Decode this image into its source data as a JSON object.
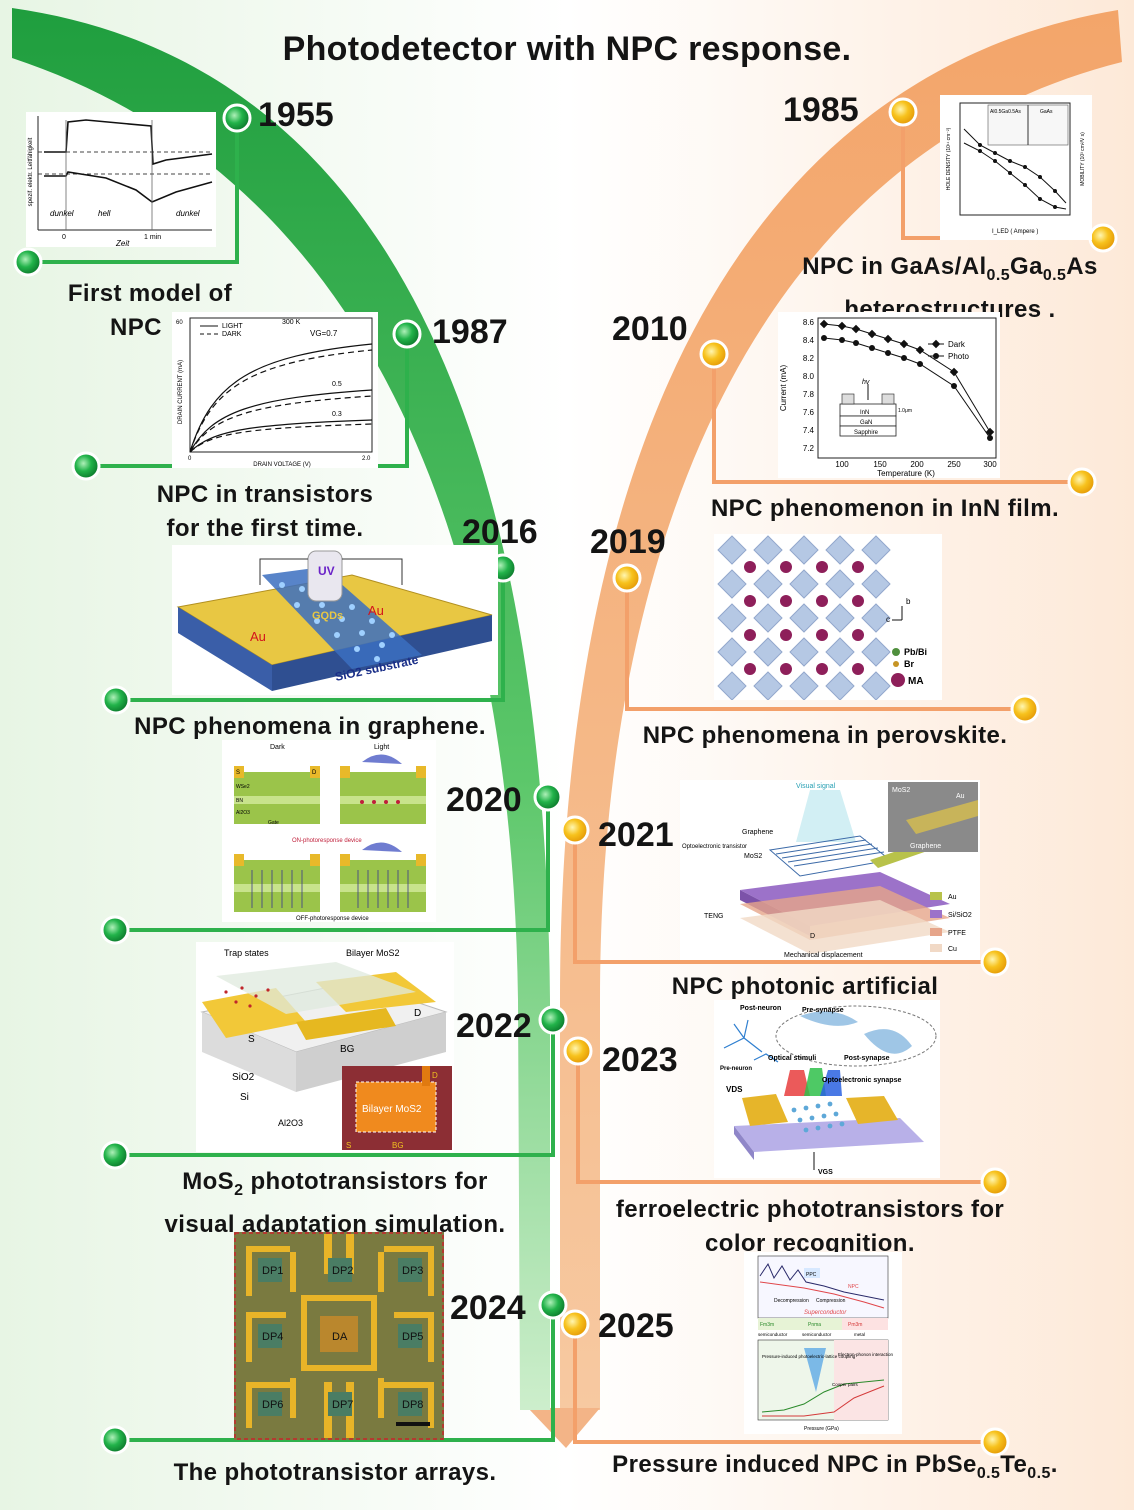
{
  "title": "Photodetector with NPC response.",
  "colors": {
    "left_track": "#2bb14a",
    "right_track": "#f6a36a",
    "dot_green": "#24b24b",
    "dot_yellow": "#f5b512"
  },
  "left_events": [
    {
      "year": "1955",
      "caption": "First model of NPC"
    },
    {
      "year": "1987",
      "caption": "NPC in transistors for the first time."
    },
    {
      "year": "2016",
      "caption": "NPC phenomena in  graphene."
    },
    {
      "year": "2020",
      "caption": ""
    },
    {
      "year": "2022",
      "caption": "MoS2 phototransistors for visual adaptation simulation."
    },
    {
      "year": "2024",
      "caption": "The phototransistor arrays."
    }
  ],
  "right_events": [
    {
      "year": "1985",
      "caption": "NPC in GaAs/Al0.5Ga0.5As heterostructures ."
    },
    {
      "year": "2010",
      "caption": "NPC phenomenon in InN film."
    },
    {
      "year": "2019",
      "caption": "NPC phenomena in perovskite."
    },
    {
      "year": "2021",
      "caption": "NPC photonic artificial"
    },
    {
      "year": "2023",
      "caption": "ferroelectric phototransistors for color  recognition."
    },
    {
      "year": "2025",
      "caption": "Pressure induced NPC in PbSe0.5Te0.5."
    }
  ],
  "caption_parts": {
    "c1955_l1": "First model of",
    "c1955_l2": "NPC",
    "c1987_l1": "NPC in transistors",
    "c1987_l2": "for the first time.",
    "c2016": "NPC phenomena in  graphene.",
    "c2022_l1a": "MoS",
    "c2022_l1sub": "2",
    "c2022_l1b": " phototransistors for",
    "c2022_l2": "visual adaptation simulation.",
    "c2024": "The phototransistor arrays.",
    "c1985_l1a": "NPC in GaAs/Al",
    "c1985_sub1": "0.5",
    "c1985_l1b": "Ga",
    "c1985_sub2": "0.5",
    "c1985_l1c": "As",
    "c1985_l2": "heterostructures .",
    "c2010": "NPC phenomenon in InN film.",
    "c2019": "NPC phenomena in perovskite.",
    "c2021": "NPC photonic artificial",
    "c2023_l1": "ferroelectric phototransistors for",
    "c2023_l2": "color  recognition.",
    "c2025_a": "Pressure induced NPC in PbSe",
    "c2025_sub1": "0.5",
    "c2025_b": "Te",
    "c2025_sub2": "0.5",
    "c2025_c": "."
  },
  "figures": {
    "f1955": {
      "ylabel": "spezif. elektr. Leitfähigkeit",
      "label_dark1": "dunkel",
      "label_light": "hell",
      "label_dark2": "dunkel",
      "t0": "0",
      "t1": "1 min",
      "xlabel": "Zeit"
    },
    "f1985": {
      "ylabel_left": "HOLE DENSITY (10¹¹ cm⁻²)",
      "ylabel_right": "MOBILITY (10³ cm²/V s)",
      "xlabel": "I_LED ( Ampere )",
      "inset_left": "Al0.5Ga0.5As",
      "inset_right": "GaAs"
    },
    "f1987": {
      "ylabel": "DRAIN CURRENT (mA)",
      "xlabel": "DRAIN VOLTAGE (V)",
      "legend_light": "LIGHT",
      "legend_dark": "DARK",
      "temp": "300 K",
      "vg_top": "VG=0.7",
      "vg_mid": "0.5",
      "vg_low": "0.3",
      "y_tick": "60",
      "x0": "0",
      "x_end": "2.0"
    },
    "f2010": {
      "yticks": [
        "8.6",
        "8.4",
        "8.2",
        "8.0",
        "7.8",
        "7.6",
        "7.4",
        "7.2"
      ],
      "xticks": [
        "100",
        "150",
        "200",
        "250",
        "300"
      ],
      "ylabel": "Current (mA)",
      "xlabel": "Temperature (K)",
      "legend_dark": "Dark",
      "legend_photo": "Photo",
      "hv": "hv",
      "layer1": "InN",
      "layer2": "GaN",
      "layer3": "Sapphire",
      "thick": "1.0μm"
    },
    "f2016": {
      "uv": "UV",
      "gqds": "GQDs",
      "au_left": "Au",
      "au_right": "Au",
      "substrate": "SiO2 substrate"
    },
    "f2019": {
      "axis_b": "b",
      "axis_c": "c",
      "legend_pb": "Pb/Bi",
      "legend_br": "Br",
      "legend_ma": "MA"
    },
    "f2020": {
      "dark": "Dark",
      "light": "Light",
      "on_label": "ON-photoresponse device",
      "off_label": "OFF-photoresponse device",
      "s": "S",
      "d": "D",
      "wse2": "WSe2",
      "bn": "BN",
      "al2o3": "Al2O3",
      "gate": "Gate"
    },
    "f2021": {
      "visual": "Visual signal",
      "graphene": "Graphene",
      "opto": "Optoelectronic transistor",
      "mos2": "MoS2",
      "teng": "TENG",
      "mech": "Mechanical displacement",
      "leg_au": "Au",
      "leg_si": "Si/SiO2",
      "leg_ptfe": "PTFE",
      "leg_cu": "Cu",
      "inset_mos2": "MoS2",
      "inset_au": "Au",
      "inset_graphene": "Graphene",
      "d": "D"
    },
    "f2022": {
      "trap": "Trap states",
      "bilayer": "Bilayer MoS2",
      "s": "S",
      "d": "D",
      "bg": "BG",
      "sio2": "SiO2",
      "si": "Si",
      "al2o3": "Al2O3",
      "inset_label": "Bilayer MoS2",
      "inset_d": "D",
      "inset_s": "S",
      "inset_bg": "BG"
    },
    "f2023": {
      "post": "Post-neuron",
      "presyn": "Pre-synapse",
      "pre": "Pre-neuron",
      "optical": "Optical stimuli",
      "postsyn": "Post-synapse",
      "vds": "VDS",
      "opto": "Optoelectronic  synapse",
      "vgs": "VGS"
    },
    "f2024": {
      "labels": [
        "DP1",
        "DP2",
        "DP3",
        "DP4",
        "DA",
        "DP5",
        "DP6",
        "DP7",
        "DP8"
      ]
    },
    "f2025": {
      "ppc": "PPC",
      "npc": "NPC",
      "decomp": "Decompression",
      "comp": "Compression",
      "superc": "Superconductor",
      "fm3m": "Fm3m",
      "pnma": "Pnma",
      "pm3m": "Pm3m",
      "semi1": "semiconductor",
      "semi2": "semiconductor",
      "metal": "metal",
      "coupling": "Pressure-induced photoelectric-lattice coupling",
      "eph": "Electron-phonon interaction",
      "cooper": "Cooper pairs",
      "xlabel": "Pressure (GPa)"
    }
  }
}
